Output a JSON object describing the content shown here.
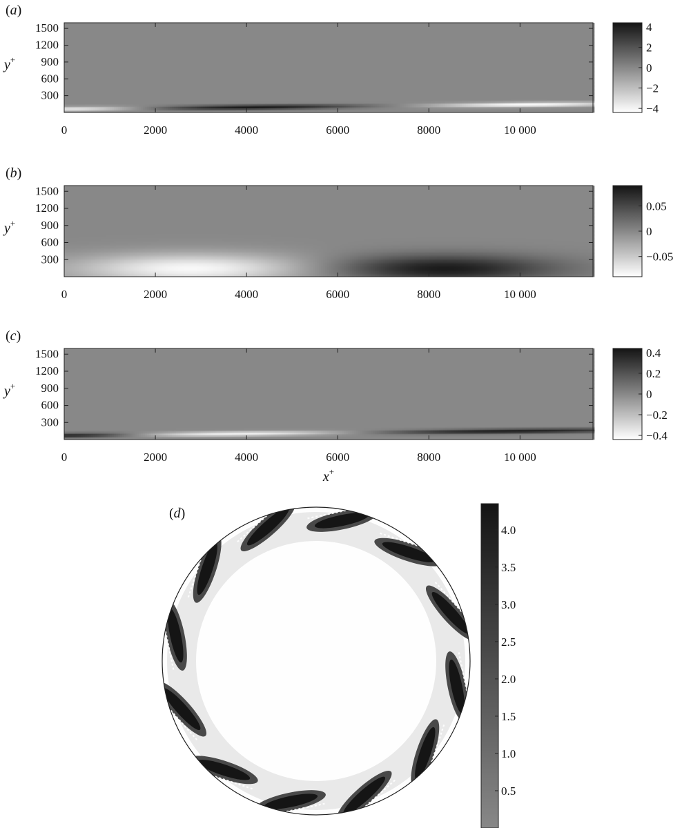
{
  "chart_data": [
    {
      "type": "heatmap",
      "panel_label": "(a)",
      "xlabel": "",
      "ylabel": "y+",
      "xlim": [
        0,
        11600
      ],
      "ylim": [
        0,
        1600
      ],
      "xticks": [
        0,
        2000,
        4000,
        6000,
        8000,
        10000
      ],
      "xtick_labels": [
        "0",
        "2000",
        "4000",
        "6000",
        "8000",
        "10 000"
      ],
      "yticks": [
        300,
        600,
        900,
        1200,
        1500
      ],
      "ytick_labels": [
        "300",
        "600",
        "900",
        "1200",
        "1500"
      ],
      "colorbar": {
        "range": [
          -4.4,
          4.4
        ],
        "ticks": [
          4,
          2,
          0,
          -2,
          -4
        ],
        "tick_labels": [
          "4",
          "2",
          "0",
          "−2",
          "−4"
        ]
      },
      "features": [
        {
          "x_center": 4200,
          "x_width": 2300,
          "y_at_start": 60,
          "y_at_end": 150,
          "sign": "positive",
          "peak": 4.2
        },
        {
          "x_center": 200,
          "x_width": 1500,
          "y_at_start": 60,
          "y_at_end": 150,
          "sign": "negative",
          "peak": -3.5
        },
        {
          "x_center": 10200,
          "x_width": 2100,
          "y_at_start": 60,
          "y_at_end": 150,
          "sign": "negative",
          "peak": -4.2
        }
      ]
    },
    {
      "type": "heatmap",
      "panel_label": "(b)",
      "xlabel": "",
      "ylabel": "y+",
      "xlim": [
        0,
        11600
      ],
      "ylim": [
        0,
        1600
      ],
      "xticks": [
        0,
        2000,
        4000,
        6000,
        8000,
        10000
      ],
      "xtick_labels": [
        "0",
        "2000",
        "4000",
        "6000",
        "8000",
        "10 000"
      ],
      "yticks": [
        300,
        600,
        900,
        1200,
        1500
      ],
      "ytick_labels": [
        "300",
        "600",
        "900",
        "1200",
        "1500"
      ],
      "colorbar": {
        "range": [
          -0.09,
          0.09
        ],
        "ticks": [
          0.05,
          0,
          -0.05
        ],
        "tick_labels": [
          "0.05",
          "0",
          "−0.05"
        ]
      },
      "features": [
        {
          "x_center": 2800,
          "x_width": 2600,
          "y_center": 140,
          "y_width": 260,
          "sign": "negative",
          "peak": -0.085
        },
        {
          "x_center": 8300,
          "x_width": 2400,
          "y_center": 140,
          "y_width": 240,
          "sign": "positive",
          "peak": 0.085
        }
      ]
    },
    {
      "type": "heatmap",
      "panel_label": "(c)",
      "xlabel": "x+",
      "ylabel": "y+",
      "xlim": [
        0,
        11600
      ],
      "ylim": [
        0,
        1600
      ],
      "xticks": [
        0,
        2000,
        4000,
        6000,
        8000,
        10000
      ],
      "xtick_labels": [
        "0",
        "2000",
        "4000",
        "6000",
        "8000",
        "10 000"
      ],
      "yticks": [
        300,
        600,
        900,
        1200,
        1500
      ],
      "ytick_labels": [
        "300",
        "600",
        "900",
        "1200",
        "1500"
      ],
      "colorbar": {
        "range": [
          -0.44,
          0.44
        ],
        "ticks": [
          0.4,
          0.2,
          0,
          -0.2,
          -0.4
        ],
        "tick_labels": [
          "0.4",
          "0.2",
          "0",
          "−0.2",
          "−0.4"
        ]
      },
      "features": [
        {
          "x_center": 200,
          "x_width": 1600,
          "y_at_start": 70,
          "y_at_end": 160,
          "sign": "positive",
          "peak": 0.4
        },
        {
          "x_center": 3800,
          "x_width": 2600,
          "y_at_start": 70,
          "y_at_end": 160,
          "sign": "negative",
          "peak": -0.4
        },
        {
          "x_center": 9800,
          "x_width": 3200,
          "y_at_start": 70,
          "y_at_end": 160,
          "sign": "positive",
          "peak": 0.4
        }
      ]
    },
    {
      "type": "heatmap",
      "panel_label": "(d)",
      "domain": "circular cross-section",
      "colorbar": {
        "range": [
          0,
          4.35
        ],
        "ticks": [
          4.0,
          3.5,
          3.0,
          2.5,
          2.0,
          1.5,
          1.0,
          0.5
        ],
        "tick_labels": [
          "4.0",
          "3.5",
          "3.0",
          "2.5",
          "2.0",
          "1.5",
          "1.0",
          "0.5"
        ]
      },
      "features": {
        "streak_count": 12,
        "peak": 4.3,
        "near_wall_band": "outer ring, inclined streaks"
      }
    }
  ]
}
